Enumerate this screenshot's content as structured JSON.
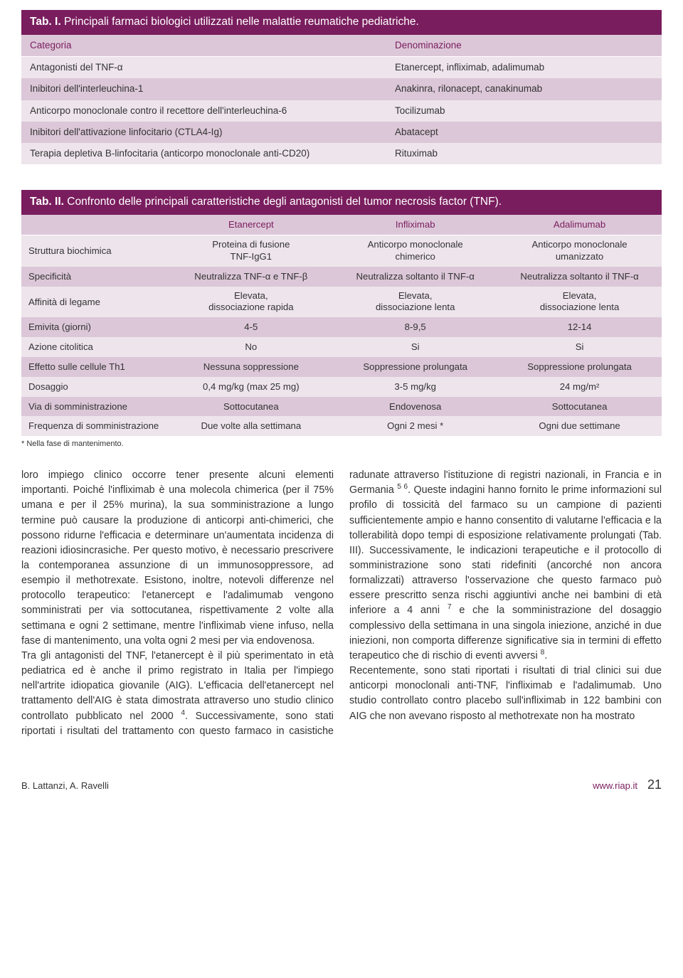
{
  "colors": {
    "primary": "#7a1d5e",
    "band_light": "#eee5ec",
    "band_dark": "#dcc7d8",
    "text": "#333333",
    "bg": "#ffffff"
  },
  "tab1": {
    "prefix": "Tab. I. ",
    "title": "Principali farmaci biologici utilizzati nelle malattie reumatiche pediatriche.",
    "head": {
      "c0": "Categoria",
      "c1": "Denominazione"
    },
    "rows": [
      {
        "c0": "Antagonisti del TNF-α",
        "c1": "Etanercept, infliximab, adalimumab"
      },
      {
        "c0": "Inibitori dell'interleuchina-1",
        "c1": "Anakinra, rilonacept, canakinumab"
      },
      {
        "c0": "Anticorpo monoclonale contro il recettore dell'interleuchina-6",
        "c1": "Tocilizumab"
      },
      {
        "c0": "Inibitori dell'attivazione linfocitario (CTLA4-Ig)",
        "c1": "Abatacept"
      },
      {
        "c0": "Terapia depletiva B-linfocitaria (anticorpo monoclonale anti-CD20)",
        "c1": "Rituximab"
      }
    ]
  },
  "tab2": {
    "prefix": "Tab. II. ",
    "title": "Confronto delle principali caratteristiche degli antagonisti del tumor necrosis factor (TNF).",
    "head": {
      "c0": "",
      "c1": "Etanercept",
      "c2": "Infliximab",
      "c3": "Adalimumab"
    },
    "rows": [
      {
        "c0": "Struttura biochimica",
        "c1": "Proteina di fusione\nTNF-IgG1",
        "c2": "Anticorpo monoclonale\nchimerico",
        "c3": "Anticorpo monoclonale\numanizzato"
      },
      {
        "c0": "Specificità",
        "c1": "Neutralizza TNF-α e TNF-β",
        "c2": "Neutralizza soltanto il TNF-α",
        "c3": "Neutralizza soltanto il TNF-α"
      },
      {
        "c0": "Affinità di legame",
        "c1": "Elevata,\ndissociazione rapida",
        "c2": "Elevata,\ndissociazione lenta",
        "c3": "Elevata,\ndissociazione lenta"
      },
      {
        "c0": "Emivita (giorni)",
        "c1": "4-5",
        "c2": "8-9,5",
        "c3": "12-14"
      },
      {
        "c0": "Azione citolitica",
        "c1": "No",
        "c2": "Si",
        "c3": "Si"
      },
      {
        "c0": "Effetto sulle cellule Th1",
        "c1": "Nessuna soppressione",
        "c2": "Soppressione prolungata",
        "c3": "Soppressione prolungata"
      },
      {
        "c0": "Dosaggio",
        "c1": "0,4 mg/kg (max 25 mg)",
        "c2": "3-5 mg/kg",
        "c3": "24 mg/m²"
      },
      {
        "c0": "Via di somministrazione",
        "c1": "Sottocutanea",
        "c2": "Endovenosa",
        "c3": "Sottocutanea"
      },
      {
        "c0": "Frequenza di somministrazione",
        "c1": "Due volte alla settimana",
        "c2": "Ogni 2 mesi *",
        "c3": "Ogni due settimane"
      }
    ],
    "footnote": "* Nella fase di mantenimento."
  },
  "body": {
    "para1_html": "loro impiego clinico occorre tener presente alcuni elementi importanti. Poiché l'infliximab è una molecola chimerica (per il 75% umana e per il 25% murina), la sua somministrazione a lungo termine può causare la produzione di anticorpi anti-chimerici, che possono ridurne l'efficacia e determinare un'aumentata incidenza di reazioni idiosincrasiche. Per questo motivo, è necessario prescrivere la contemporanea assunzione di un immunosoppressore, ad esempio il methotrexate. Esistono, inoltre, notevoli differenze nel protocollo terapeutico: l'etanercept e l'adalimumab vengono somministrati per via sottocutanea, rispettivamente 2 volte alla settimana e ogni 2 settimane, mentre l'infliximab viene infuso, nella fase di mantenimento, una volta ogni 2 mesi per via endovenosa.",
    "para2_html": "Tra gli antagonisti del TNF, l'etanercept è il più sperimentato in età pediatrica ed è anche il primo registrato in Italia per l'impiego nell'artrite idiopatica giovanile (AIG). L'efficacia dell'etanercept nel trattamento dell'AIG è stata dimostrata attraverso uno studio clinico controllato pubblicato nel 2000 <span class=\"sup\">4</span>. Successivamente, sono stati riportati i risultati del trattamento con questo farmaco in casistiche radunate attraverso l'istituzione di registri nazionali, in Francia e in Germania <span class=\"sup\">5 6</span>. Queste indagini hanno fornito le prime informazioni sul profilo di tossicità del farmaco su un campione di pazienti sufficientemente ampio e hanno consentito di valutarne l'efficacia e la tollerabilità dopo tempi di esposizione relativamente prolungati (Tab. III). Successivamente, le indicazioni terapeutiche e il protocollo di somministrazione sono stati ridefiniti (ancorché non ancora formalizzati) attraverso l'osservazione che questo farmaco può essere prescritto senza rischi aggiuntivi anche nei bambini di età inferiore a 4 anni <span class=\"sup\">7</span> e che la somministrazione del dosaggio complessivo della settimana in una singola iniezione, anziché in due iniezioni, non comporta differenze significative sia in termini di effetto terapeutico che di rischio di eventi avversi <span class=\"sup\">8</span>.",
    "para3_html": "Recentemente, sono stati riportati i risultati di trial clinici sui due anticorpi monoclonali anti-TNF, l'infliximab e l'adalimumab. Uno studio controllato contro placebo sull'infliximab in 122 bambini con AIG che non avevano risposto al methotrexate non ha mostrato"
  },
  "footer": {
    "authors": "B. Lattanzi, A. Ravelli",
    "url": "www.riap.it",
    "page": "21"
  }
}
